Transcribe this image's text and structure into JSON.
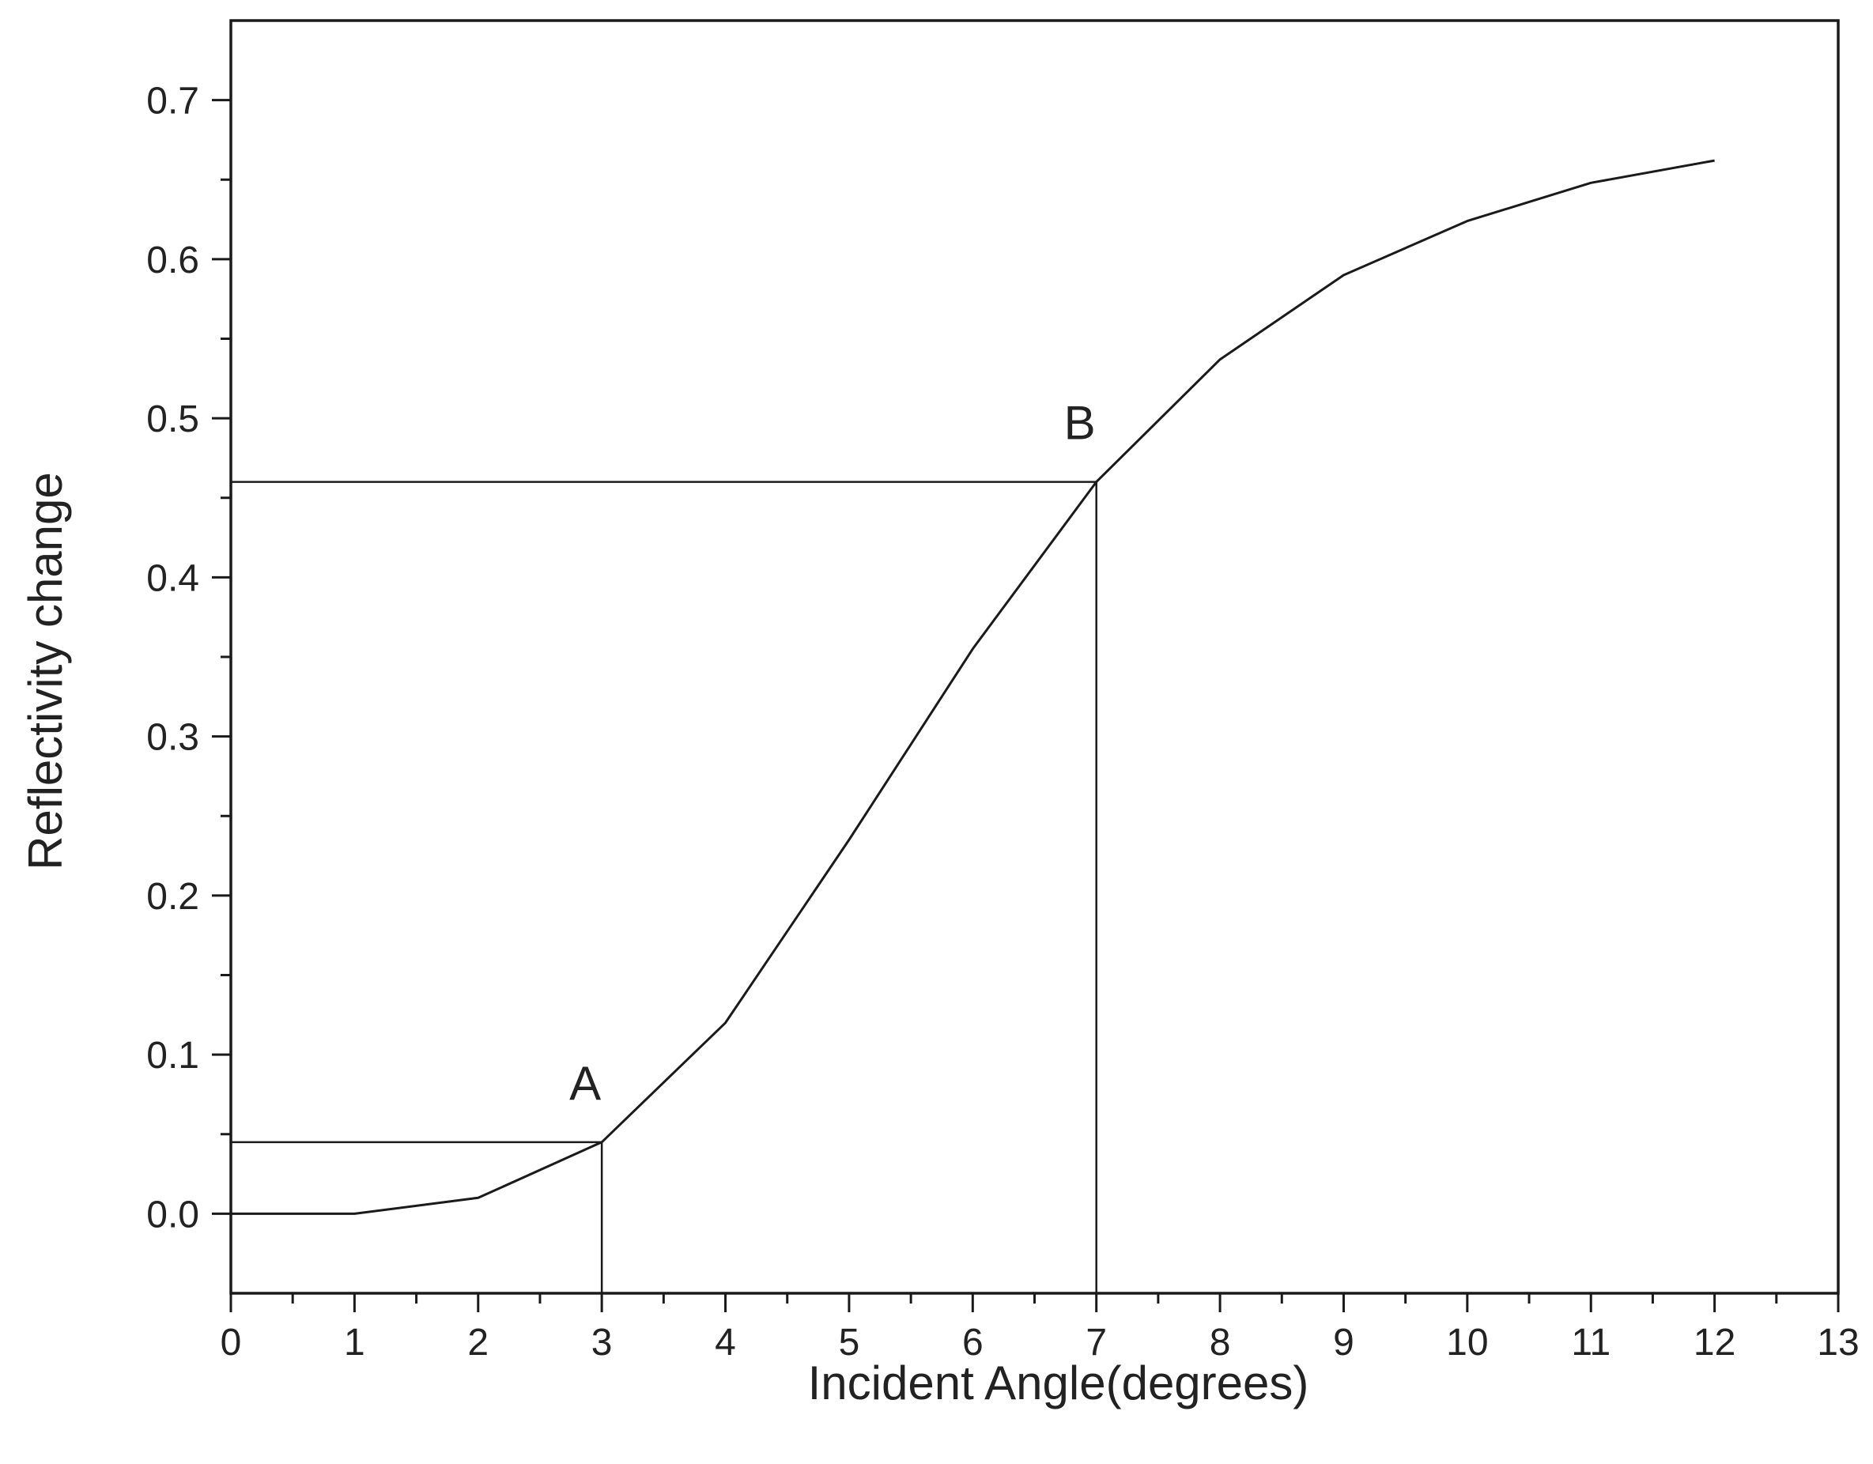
{
  "chart_data": {
    "type": "line",
    "title": "",
    "xlabel": "Incident  Angle(degrees)",
    "ylabel": "Reflectivity  change",
    "xlim": [
      0,
      13
    ],
    "ylim": [
      -0.05,
      0.75
    ],
    "grid": false,
    "legend": "none",
    "x_ticks": [
      0,
      1,
      2,
      3,
      4,
      5,
      6,
      7,
      8,
      9,
      10,
      11,
      12,
      13
    ],
    "x_tick_labels": [
      "0",
      "1",
      "2",
      "3",
      "4",
      "5",
      "6",
      "7",
      "8",
      "9",
      "10",
      "11",
      "12",
      "13"
    ],
    "y_ticks": [
      0.0,
      0.1,
      0.2,
      0.3,
      0.4,
      0.5,
      0.6,
      0.7
    ],
    "y_tick_labels": [
      "0.0",
      "0.1",
      "0.2",
      "0.3",
      "0.4",
      "0.5",
      "0.6",
      "0.7"
    ],
    "series": [
      {
        "x": [
          0,
          1,
          2,
          3,
          4,
          5,
          6,
          7,
          8,
          9,
          10,
          11,
          12
        ],
        "y": [
          0.0,
          0.0,
          0.01,
          0.045,
          0.12,
          0.235,
          0.355,
          0.46,
          0.537,
          0.59,
          0.624,
          0.648,
          0.662
        ],
        "color": "#1a1a1a"
      }
    ],
    "annotations": [
      {
        "label": "A",
        "x": 3,
        "y": 0.045
      },
      {
        "label": "B",
        "x": 7,
        "y": 0.46
      }
    ]
  }
}
